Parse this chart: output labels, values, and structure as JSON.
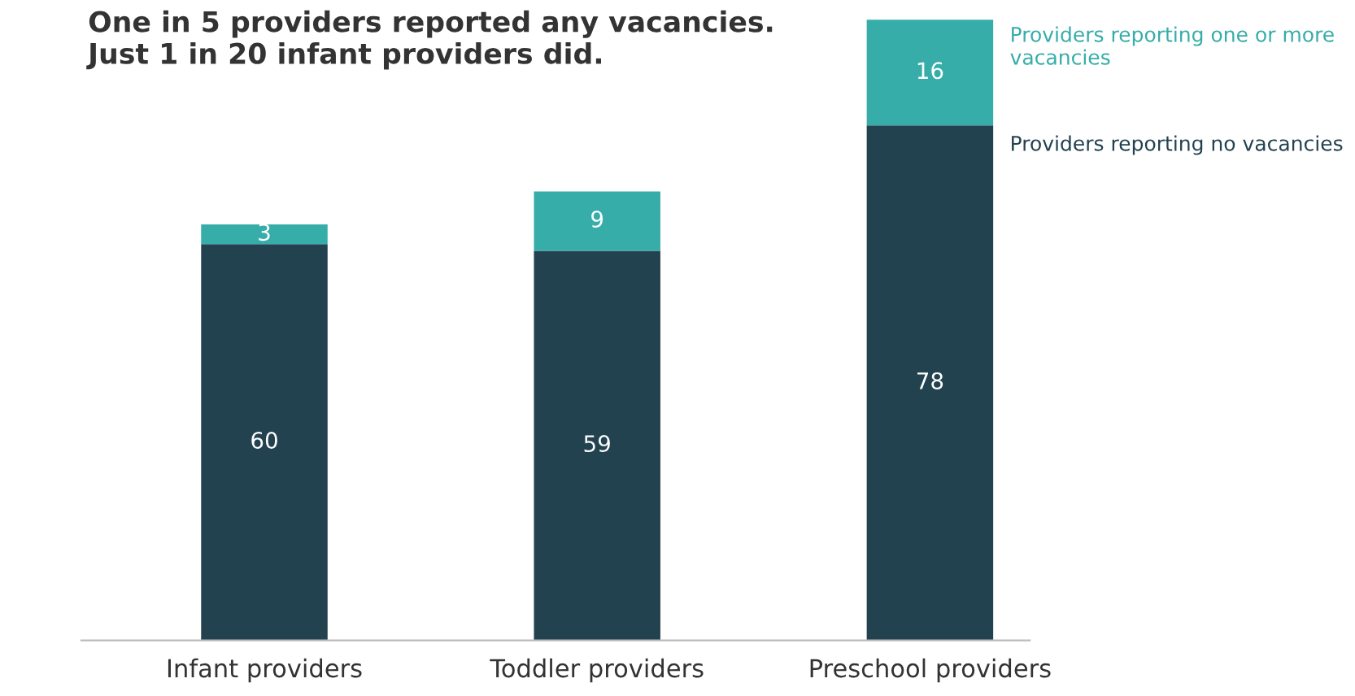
{
  "chart_data": {
    "type": "bar",
    "title": "One in 5 providers reported any vacancies.\nJust 1 in 20 infant providers did.",
    "categories": [
      "Infant providers",
      "Toddler providers",
      "Preschool providers"
    ],
    "stacked": true,
    "data_labels": true,
    "series": [
      {
        "name": "Providers reporting no vacancies",
        "color": "#23424f",
        "values": [
          60,
          59,
          78
        ]
      },
      {
        "name": "Providers reporting one or more vacancies",
        "color": "#36ada9",
        "values": [
          3,
          9,
          16
        ]
      }
    ]
  }
}
